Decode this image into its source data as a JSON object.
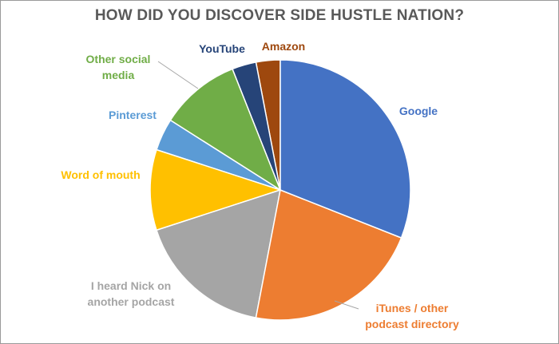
{
  "chart_data": {
    "type": "pie",
    "title": "HOW DID YOU DISCOVER SIDE HUSTLE NATION?",
    "categories": [
      "Google",
      "iTunes / other podcast directory",
      "I heard Nick on another podcast",
      "Word of mouth",
      "Pinterest",
      "Other social media",
      "YouTube",
      "Amazon"
    ],
    "values": [
      31,
      22,
      17,
      10,
      4,
      10,
      3,
      3
    ],
    "colors": [
      "#4472c4",
      "#ed7d31",
      "#a5a5a5",
      "#ffc000",
      "#5b9bd5",
      "#70ad47",
      "#264478",
      "#9e480e"
    ]
  }
}
